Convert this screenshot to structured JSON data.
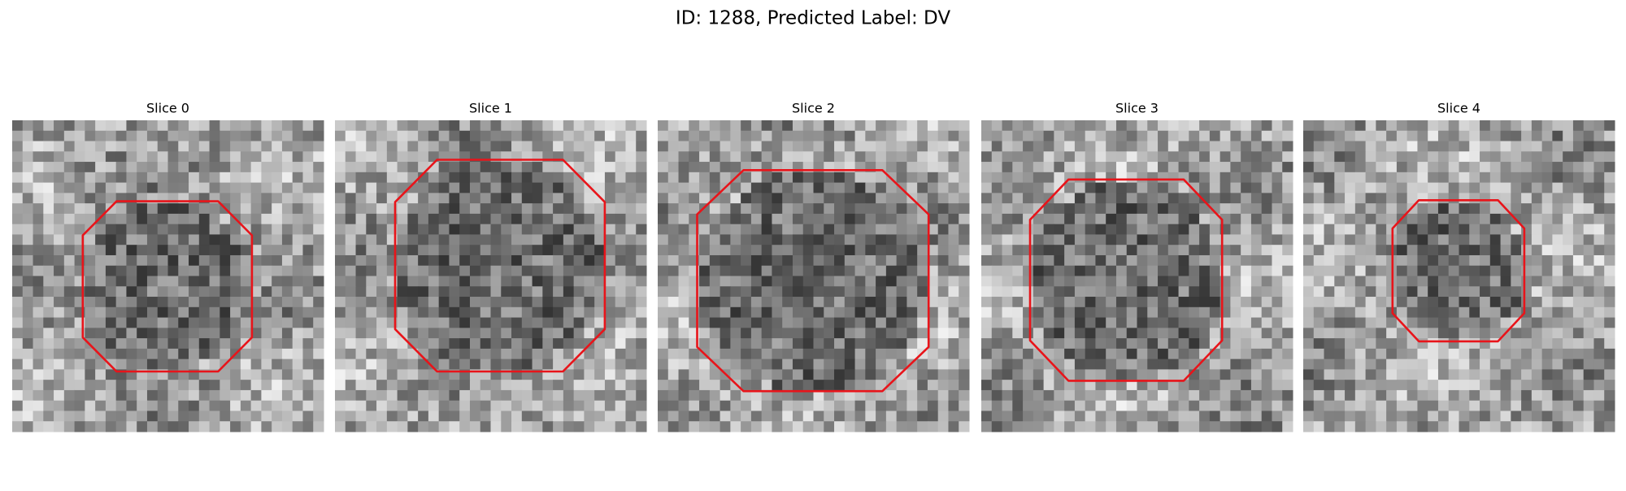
{
  "title": "ID: 1288, Predicted Label: DV",
  "panels": [
    {
      "title": "Slice 0"
    },
    {
      "title": "Slice 1"
    },
    {
      "title": "Slice 2"
    },
    {
      "title": "Slice 3"
    },
    {
      "title": "Slice 4"
    }
  ]
}
